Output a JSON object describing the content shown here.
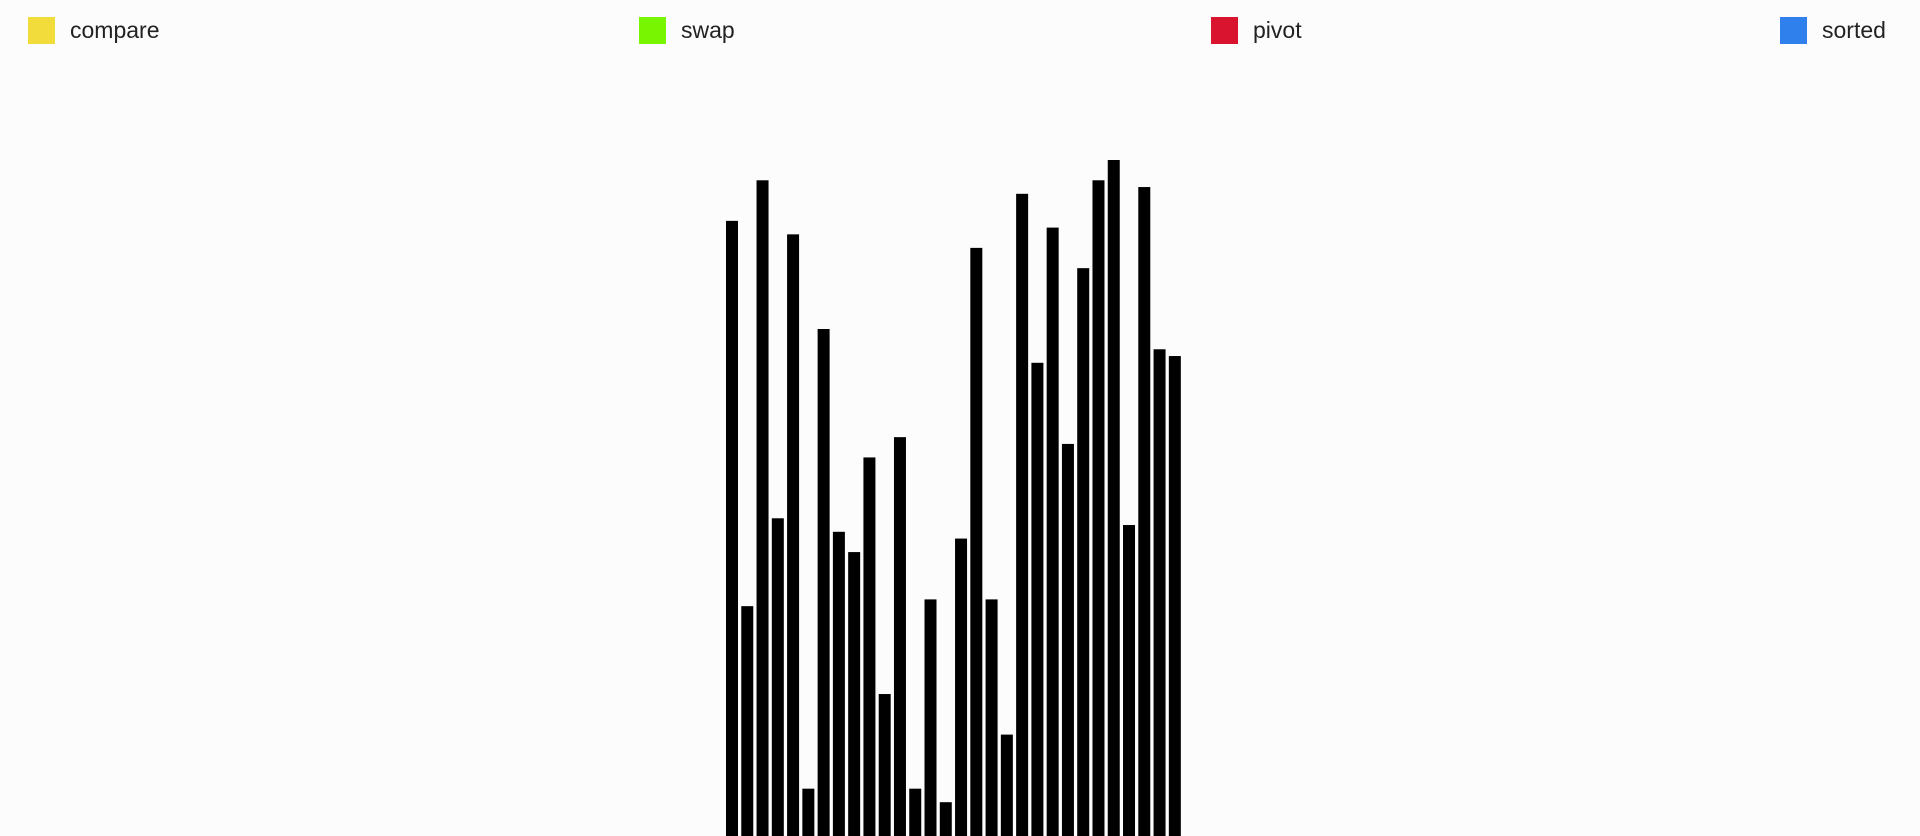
{
  "legend": {
    "items": [
      {
        "label": "compare",
        "color": "#f1dc3c"
      },
      {
        "label": "swap",
        "color": "#78f500"
      },
      {
        "label": "pivot",
        "color": "#d9142e"
      },
      {
        "label": "sorted",
        "color": "#2f80ed"
      }
    ]
  },
  "chart_data": {
    "type": "bar",
    "title": "",
    "xlabel": "",
    "ylabel": "",
    "bar_color": "#000000",
    "ylim": [
      0,
      100
    ],
    "values": [
      91,
      34,
      97,
      47,
      89,
      7,
      75,
      45,
      42,
      56,
      21,
      59,
      7,
      35,
      5,
      44,
      87,
      35,
      15,
      95,
      70,
      90,
      58,
      84,
      97,
      100,
      46,
      96,
      72,
      71
    ]
  }
}
